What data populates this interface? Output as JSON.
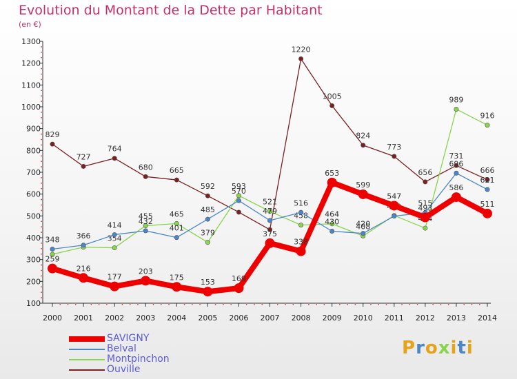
{
  "title": "Evolution du Montant de la Dette par Habitant",
  "subtitle": "(en €)",
  "logo": "Proxiti",
  "chart_data": {
    "type": "line",
    "x": [
      "2000",
      "2001",
      "2002",
      "2003",
      "2004",
      "2005",
      "2006",
      "2007",
      "2008",
      "2009",
      "2010",
      "2011",
      "2012",
      "2013",
      "2014"
    ],
    "ylim": [
      100,
      1300
    ],
    "yticks": [
      100,
      200,
      300,
      400,
      500,
      600,
      700,
      800,
      900,
      1000,
      1100,
      1200,
      1300
    ],
    "grid": false,
    "legend_position": "bottom-left",
    "series": [
      {
        "name": "Ouville",
        "color": "#7a2020",
        "values": [
          829,
          727,
          764,
          680,
          665,
          592,
          517,
          437,
          1220,
          1005,
          824,
          773,
          656,
          731,
          666
        ],
        "labels": [
          "829",
          "727",
          "764",
          "680",
          "665",
          "592",
          "",
          "",
          "1220",
          "1005",
          "824",
          "773",
          "656",
          "731",
          "666"
        ]
      },
      {
        "name": "Montpinchon",
        "color": "#88d44a",
        "values": [
          324,
          357,
          354,
          455,
          465,
          379,
          593,
          521,
          458,
          464,
          408,
          502,
          444,
          989,
          916
        ],
        "labels": [
          "",
          "",
          "354",
          "455",
          "465",
          "379",
          "593",
          "521",
          "458",
          "464",
          "408",
          "",
          "444",
          "989",
          "916"
        ]
      },
      {
        "name": "Belval",
        "color": "#4a86c8",
        "values": [
          348,
          366,
          414,
          432,
          401,
          485,
          570,
          479,
          516,
          430,
          420,
          499,
          515,
          696,
          621
        ],
        "labels": [
          "348",
          "366",
          "414",
          "432",
          "401",
          "485",
          "570",
          "479",
          "516",
          "430",
          "420",
          "499",
          "515",
          "696",
          "621"
        ]
      },
      {
        "name": "SAVIGNY",
        "color": "#ee0000",
        "values": [
          259,
          216,
          177,
          203,
          175,
          153,
          169,
          375,
          338,
          653,
          599,
          547,
          493,
          586,
          511
        ],
        "labels": [
          "259",
          "216",
          "177",
          "203",
          "175",
          "153",
          "169",
          "375",
          "338",
          "653",
          "599",
          "547",
          "493",
          "586",
          "511"
        ]
      }
    ]
  },
  "legend": [
    {
      "name": "SAVIGNY",
      "color": "#ee0000"
    },
    {
      "name": "Belval",
      "color": "#4a86c8"
    },
    {
      "name": "Montpinchon",
      "color": "#88d44a"
    },
    {
      "name": "Ouville",
      "color": "#7a2020"
    }
  ],
  "logo_colors": [
    "#e5a317",
    "#4a86c8",
    "#e5a317",
    "#88d44a",
    "#e5a317",
    "#4a86c8",
    "#e5a317"
  ]
}
